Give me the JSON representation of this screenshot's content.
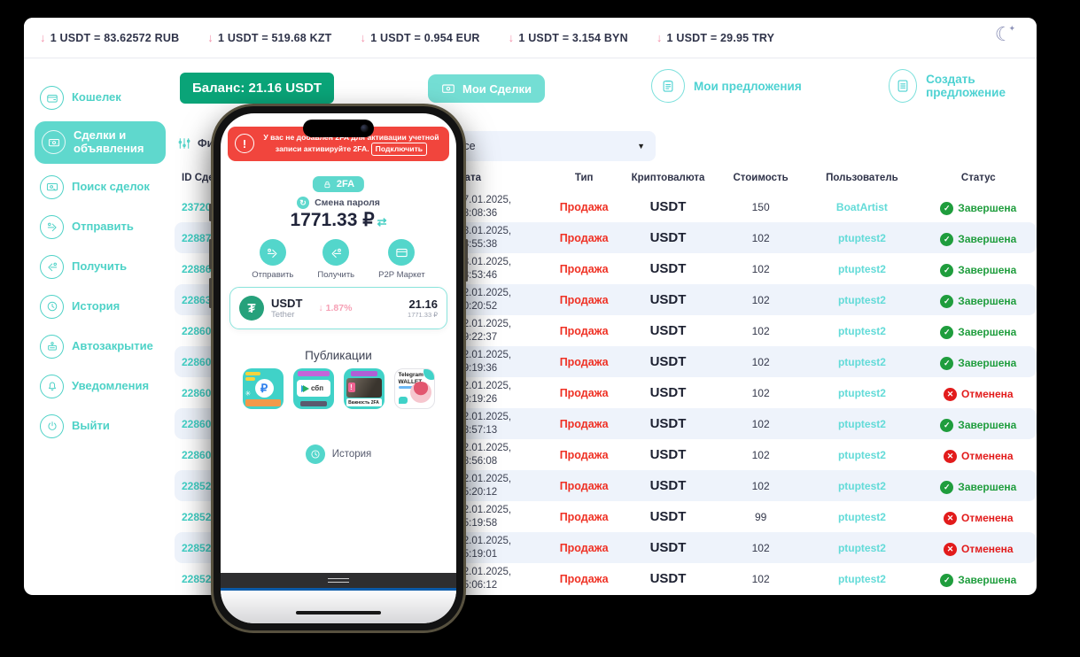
{
  "ticker": {
    "rates": [
      "1 USDT = 83.62572 RUB",
      "1 USDT = 519.68 KZT",
      "1 USDT = 0.954 EUR",
      "1 USDT = 3.154 BYN",
      "1 USDT = 29.95 TRY"
    ]
  },
  "icons": {
    "down_arrow": "↓",
    "moon": "☾",
    "sparkle": "✦",
    "check": "✓",
    "cross": "✕",
    "caret_down": "▼",
    "exclamation": "!",
    "ruble": "₽",
    "tether": "₮",
    "swap": "⇄"
  },
  "sidebar": {
    "items": [
      {
        "label": "Кошелек",
        "icon": "wallet",
        "active": false
      },
      {
        "label": "Сделки и объявления",
        "icon": "deals",
        "active": true
      },
      {
        "label": "Поиск сделок",
        "icon": "search-deals",
        "active": false
      },
      {
        "label": "Отправить",
        "icon": "send",
        "active": false
      },
      {
        "label": "Получить",
        "icon": "receive",
        "active": false
      },
      {
        "label": "История",
        "icon": "history",
        "active": false
      },
      {
        "label": "Автозакрытие",
        "icon": "autoclose",
        "active": false
      },
      {
        "label": "Уведомления",
        "icon": "bell",
        "active": false
      },
      {
        "label": "Выйти",
        "icon": "logout",
        "active": false
      }
    ]
  },
  "toolbar": {
    "balance": "Баланс: 21.16 USDT",
    "my_deals": "Мои Сделки",
    "my_offers": "Мои предложения",
    "create_offer": "Создать предложение"
  },
  "filter": {
    "label": "Фильтр",
    "select_value": "Все"
  },
  "table": {
    "headers": [
      "ID Сделки",
      "Дата",
      "Тип",
      "Криптовалюта",
      "Стоимость",
      "Пользователь",
      "Статус"
    ],
    "rows": [
      {
        "id": "23720",
        "date1": "17.01.2025,",
        "date2": "18:08:36",
        "type": "Продажа",
        "crypto": "USDT",
        "cost": "150",
        "user": "BoatArtist",
        "status": "Завершена",
        "kind": "done"
      },
      {
        "id": "22887",
        "date1": "03.01.2025,",
        "date2": "18:55:38",
        "type": "Продажа",
        "crypto": "USDT",
        "cost": "102",
        "user": "ptuptest2",
        "status": "Завершена",
        "kind": "done"
      },
      {
        "id": "22886",
        "date1": "03.01.2025,",
        "date2": "18:53:46",
        "type": "Продажа",
        "crypto": "USDT",
        "cost": "102",
        "user": "ptuptest2",
        "status": "Завершена",
        "kind": "done"
      },
      {
        "id": "22863",
        "date1": "02.01.2025,",
        "date2": "20:20:52",
        "type": "Продажа",
        "crypto": "USDT",
        "cost": "102",
        "user": "ptuptest2",
        "status": "Завершена",
        "kind": "done"
      },
      {
        "id": "22860",
        "date1": "02.01.2025,",
        "date2": "19:22:37",
        "type": "Продажа",
        "crypto": "USDT",
        "cost": "102",
        "user": "ptuptest2",
        "status": "Завершена",
        "kind": "done"
      },
      {
        "id": "22860",
        "date1": "02.01.2025,",
        "date2": "19:19:36",
        "type": "Продажа",
        "crypto": "USDT",
        "cost": "102",
        "user": "ptuptest2",
        "status": "Завершена",
        "kind": "done"
      },
      {
        "id": "22860",
        "date1": "02.01.2025,",
        "date2": "19:19:26",
        "type": "Продажа",
        "crypto": "USDT",
        "cost": "102",
        "user": "ptuptest2",
        "status": "Отменена",
        "kind": "cancel"
      },
      {
        "id": "22860",
        "date1": "02.01.2025,",
        "date2": "18:57:13",
        "type": "Продажа",
        "crypto": "USDT",
        "cost": "102",
        "user": "ptuptest2",
        "status": "Завершена",
        "kind": "done"
      },
      {
        "id": "22860",
        "date1": "02.01.2025,",
        "date2": "18:56:08",
        "type": "Продажа",
        "crypto": "USDT",
        "cost": "102",
        "user": "ptuptest2",
        "status": "Отменена",
        "kind": "cancel"
      },
      {
        "id": "22852",
        "date1": "02.01.2025,",
        "date2": "15:20:12",
        "type": "Продажа",
        "crypto": "USDT",
        "cost": "102",
        "user": "ptuptest2",
        "status": "Завершена",
        "kind": "done"
      },
      {
        "id": "22852",
        "date1": "02.01.2025,",
        "date2": "15:19:58",
        "type": "Продажа",
        "crypto": "USDT",
        "cost": "99",
        "user": "ptuptest2",
        "status": "Отменена",
        "kind": "cancel"
      },
      {
        "id": "22852",
        "date1": "02.01.2025,",
        "date2": "15:19:01",
        "type": "Продажа",
        "crypto": "USDT",
        "cost": "102",
        "user": "ptuptest2",
        "status": "Отменена",
        "kind": "cancel"
      },
      {
        "id": "22852",
        "date1": "02.01.2025,",
        "date2": "15:06:12",
        "type": "Продажа",
        "crypto": "USDT",
        "cost": "102",
        "user": "ptuptest2",
        "status": "Завершена",
        "kind": "done"
      }
    ]
  },
  "phone": {
    "banner": {
      "text": "У вас не добавлен 2FA для активации учетной записи активируйте 2FA.",
      "button": "Подключить"
    },
    "twofa_button": "2FA",
    "change_password": "Смена пароля",
    "balance": "1771.33 ₽",
    "actions": [
      {
        "label": "Отправить",
        "icon": "send"
      },
      {
        "label": "Получить",
        "icon": "receive"
      },
      {
        "label": "P2P Маркет",
        "icon": "card"
      }
    ],
    "asset": {
      "symbol": "USDT",
      "name": "Tether",
      "change": "1.87%",
      "amount": "21.16",
      "amount_rub": "1771.33 ₽"
    },
    "publications": {
      "title": "Публикации",
      "tiles": [
        {
          "name": "ruble-promo",
          "symbol": "₽"
        },
        {
          "name": "sbp-promo",
          "label": "сбп"
        },
        {
          "name": "2fa-importance",
          "label": "Важность 2FA"
        },
        {
          "name": "telegram-wallet",
          "label": "Telegram WALLET"
        }
      ]
    },
    "history": "История"
  },
  "colors": {
    "accent_teal": "#4ed2c7",
    "balance_green": "#0aa478",
    "banner_red": "#f1453d",
    "sell_red": "#ef3124",
    "status_done": "#1f9d3d",
    "status_cancel": "#e21b1b",
    "stripe": "#eef3fb",
    "tether_green": "#26a17b",
    "pink": "#f290aa"
  }
}
